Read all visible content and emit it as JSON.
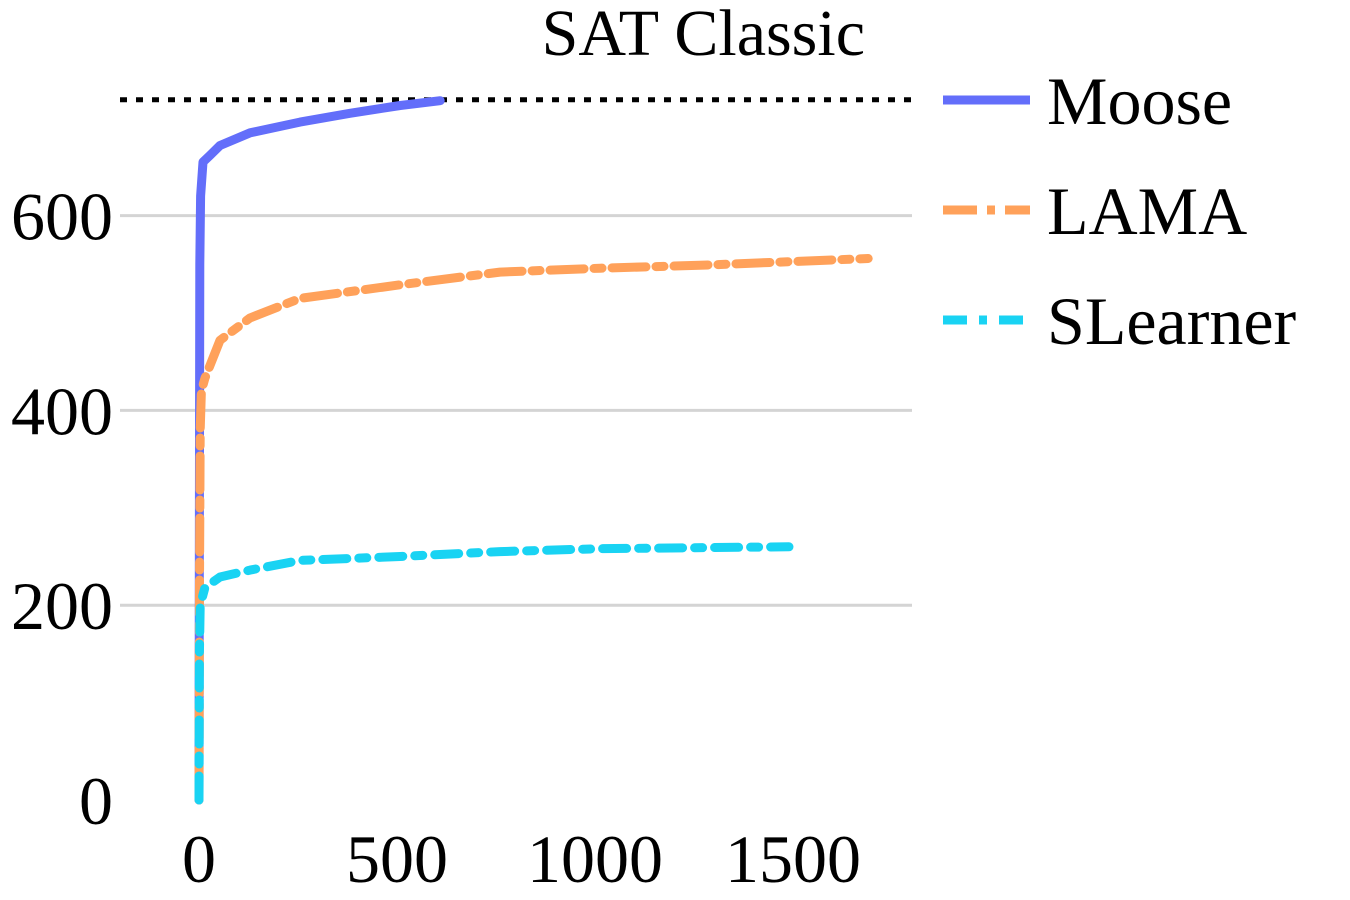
{
  "chart_data": {
    "type": "line",
    "title": "SAT Classic",
    "xlabel": "",
    "ylabel": "",
    "xlim": [
      -30,
      1800
    ],
    "ylim": [
      0,
      720
    ],
    "xticks": [
      0,
      500,
      1000,
      1500
    ],
    "xtick_labels": [
      "0",
      "500",
      "1000",
      "1500"
    ],
    "yticks": [
      0,
      200,
      400,
      600
    ],
    "ytick_labels": [
      "0",
      "200",
      "400",
      "600"
    ],
    "grid": "horizontal",
    "legend_position": "right",
    "reference_line": {
      "y": 719,
      "style": "dotted",
      "color": "#000000"
    },
    "series": [
      {
        "name": "Moose",
        "color": "#636efa",
        "dash": "solid",
        "x": [
          0,
          1,
          2,
          4,
          10,
          28,
          53,
          129,
          255,
          381,
          508,
          609
        ],
        "y": [
          0,
          300,
          550,
          620,
          655,
          662,
          672,
          685,
          696,
          705,
          713,
          718
        ]
      },
      {
        "name": "LAMA",
        "color": "#ffa15a",
        "dash": "longdashdot",
        "x": [
          0,
          1,
          3,
          6,
          15,
          53,
          129,
          255,
          508,
          760,
          1013,
          1265,
          1690
        ],
        "y": [
          0,
          200,
          380,
          420,
          433,
          472,
          495,
          515,
          529,
          542,
          546,
          549,
          556
        ]
      },
      {
        "name": "SLearner",
        "color": "#19d3f3",
        "dash": "dashdot",
        "x": [
          0,
          1,
          3,
          15,
          53,
          129,
          255,
          508,
          760,
          1013,
          1490
        ],
        "y": [
          0,
          150,
          200,
          218,
          229,
          236,
          246,
          250,
          255,
          258,
          260
        ]
      }
    ]
  }
}
